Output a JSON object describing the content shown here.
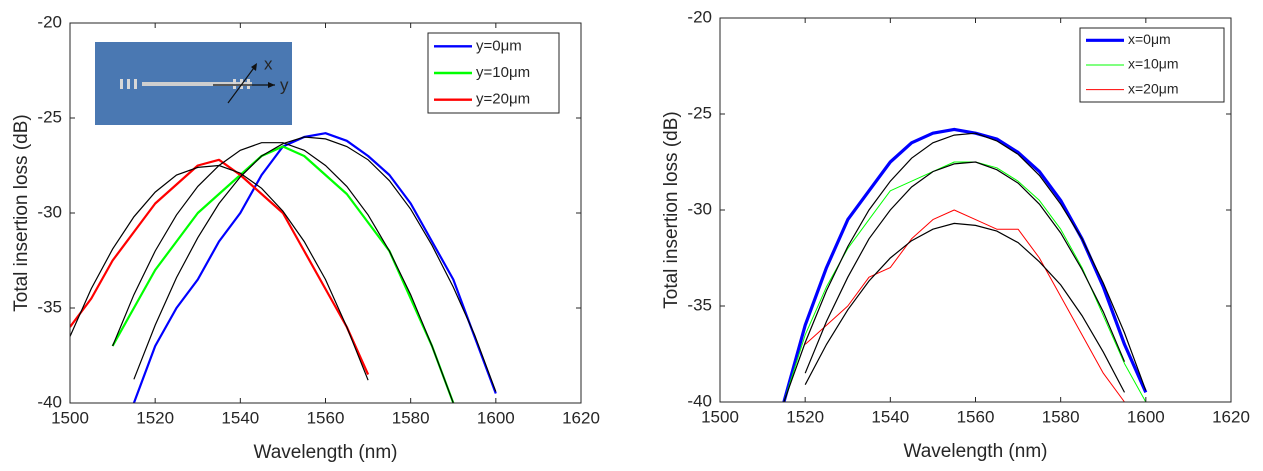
{
  "chart_data": [
    {
      "type": "line",
      "xlabel": "Wavelength (nm)",
      "ylabel": "Total insertion loss (dB)",
      "xlim": [
        1500,
        1620
      ],
      "xticks": [
        1500,
        1520,
        1540,
        1560,
        1580,
        1600,
        1620
      ],
      "ylim": [
        -40,
        -20
      ],
      "yticks": [
        -40,
        -35,
        -30,
        -25,
        -20
      ],
      "inset_labels": [
        "x",
        "y"
      ],
      "x": [
        1500,
        1505,
        1510,
        1515,
        1520,
        1525,
        1530,
        1535,
        1540,
        1545,
        1550,
        1555,
        1560,
        1565,
        1570,
        1575,
        1580,
        1585,
        1590,
        1595,
        1600
      ],
      "series": [
        {
          "name": "y=0μm",
          "color": "#0000ff",
          "line_width": 2.2,
          "values": [
            null,
            null,
            null,
            -40,
            -37,
            -35,
            -33.5,
            -31.5,
            -30,
            -28,
            -26.5,
            -26,
            -25.8,
            -26.2,
            -27,
            -28,
            -29.5,
            -31.5,
            -33.5,
            -36.5,
            -39.5
          ],
          "fit": [
            null,
            null,
            null,
            -38.75,
            -35.9,
            -33.4,
            -31.3,
            -29.5,
            -28.1,
            -27.0,
            -26.35,
            -26.0,
            -26.1,
            -26.5,
            -27.2,
            -28.3,
            -29.8,
            -31.7,
            -33.9,
            -36.4,
            -39.4
          ]
        },
        {
          "name": "y=10μm",
          "color": "#00ff00",
          "line_width": 2.2,
          "values": [
            null,
            null,
            -37,
            -35,
            -33,
            -31.5,
            -30,
            -29,
            -28,
            -27,
            -26.5,
            -27,
            -28,
            -29,
            -30.5,
            -32,
            -34.5,
            -37,
            -40,
            null,
            null
          ],
          "fit": [
            null,
            null,
            -37.0,
            -34.3,
            -32.0,
            -30.1,
            -28.6,
            -27.5,
            -26.7,
            -26.3,
            -26.3,
            -26.7,
            -27.5,
            -28.6,
            -30.1,
            -32.0,
            -34.3,
            -37.0,
            -40.0,
            null,
            null
          ]
        },
        {
          "name": "y=20μm",
          "color": "#ff0000",
          "line_width": 2.2,
          "values": [
            -36,
            -34.5,
            -32.5,
            -31,
            -29.5,
            -28.5,
            -27.5,
            -27.2,
            -28,
            -29,
            -30,
            -32,
            -34,
            -36,
            -38.5,
            null,
            null,
            null,
            null,
            null,
            null
          ],
          "fit": [
            -36.5,
            -33.98,
            -31.9,
            -30.2,
            -28.9,
            -28.0,
            -27.6,
            -27.5,
            -27.9,
            -28.7,
            -29.9,
            -31.5,
            -33.5,
            -36.0,
            -38.8,
            null,
            null,
            null,
            null,
            null,
            null
          ]
        }
      ]
    },
    {
      "type": "line",
      "xlabel": "Wavelength (nm)",
      "ylabel": "Total insertion loss (dB)",
      "xlim": [
        1500,
        1620
      ],
      "xticks": [
        1500,
        1520,
        1540,
        1560,
        1580,
        1600,
        1620
      ],
      "ylim": [
        -40,
        -20
      ],
      "yticks": [
        -40,
        -35,
        -30,
        -25,
        -20
      ],
      "x": [
        1515,
        1520,
        1525,
        1530,
        1535,
        1540,
        1545,
        1550,
        1555,
        1560,
        1565,
        1570,
        1575,
        1580,
        1585,
        1590,
        1595,
        1600
      ],
      "series": [
        {
          "name": "x=0μm",
          "color": "#0000ff",
          "line_width": 3.2,
          "values": [
            -40,
            -36,
            -33,
            -30.5,
            -29,
            -27.5,
            -26.5,
            -26,
            -25.8,
            -26,
            -26.3,
            -27,
            -28,
            -29.5,
            -31.5,
            -34,
            -37,
            -39.5
          ],
          "fit": [
            -40.0,
            -36.9,
            -34.2,
            -31.9,
            -30.0,
            -28.5,
            -27.3,
            -26.5,
            -26.1,
            -26.0,
            -26.4,
            -27.1,
            -28.2,
            -29.7,
            -31.5,
            -33.8,
            -36.4,
            -39.4
          ]
        },
        {
          "name": "x=10μm",
          "color": "#00ff00",
          "line_width": 1,
          "values": [
            -40,
            -36.5,
            -34,
            -32,
            -30.5,
            -29,
            -28.5,
            -28,
            -27.5,
            -27.5,
            -27.8,
            -28.5,
            -29.5,
            -31,
            -33,
            -35.5,
            -38,
            -40
          ],
          "fit": [
            null,
            -38.5,
            -35.8,
            -33.5,
            -31.5,
            -30.0,
            -28.8,
            -28.0,
            -27.6,
            -27.5,
            -27.9,
            -28.6,
            -29.7,
            -31.2,
            -33.1,
            -35.3,
            -37.9,
            null
          ]
        },
        {
          "name": "x=20μm",
          "color": "#ff0000",
          "line_width": 1,
          "values": [
            null,
            -37,
            -36,
            -35,
            -33.5,
            -33,
            -31.5,
            -30.5,
            -30,
            -30.5,
            -31,
            -31,
            -32.5,
            -34.5,
            -36.5,
            -38.5,
            -40,
            null
          ],
          "fit": [
            null,
            -39.1,
            -37.0,
            -35.2,
            -33.7,
            -32.5,
            -31.6,
            -31.0,
            -30.7,
            -30.8,
            -31.1,
            -31.7,
            -32.7,
            -33.9,
            -35.5,
            -37.4,
            -39.5,
            null
          ]
        }
      ]
    }
  ]
}
